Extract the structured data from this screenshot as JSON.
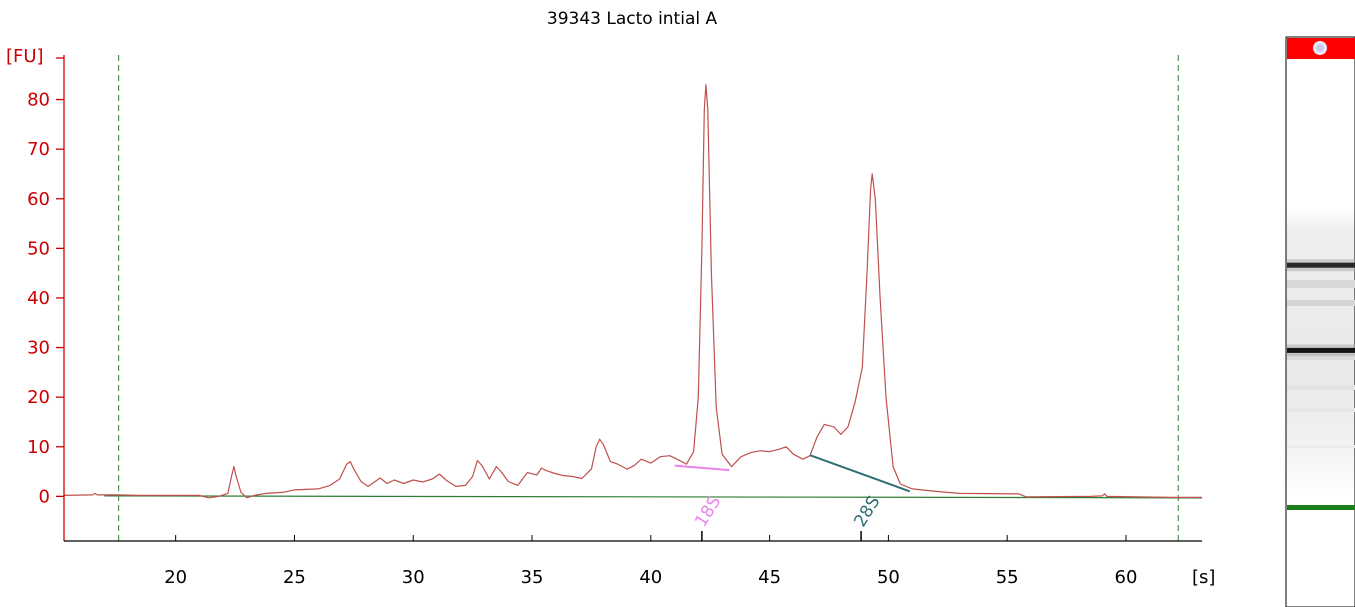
{
  "chart_data": {
    "type": "line",
    "title": "39343 Lacto intial A",
    "ylabel": "[FU]",
    "xlabel": "[s]",
    "xlim": [
      15.3,
      63.2
    ],
    "ylim": [
      -9,
      91
    ],
    "yticks": [
      0,
      10,
      20,
      30,
      40,
      50,
      60,
      70,
      80
    ],
    "yticklabels": [
      "0",
      "10",
      "20",
      "30",
      "40",
      "50",
      "60",
      "70",
      "80"
    ],
    "xticks": [
      20,
      25,
      30,
      35,
      40,
      45,
      50,
      55,
      60
    ],
    "xticklabels": [
      "20",
      "25",
      "30",
      "35",
      "40",
      "45",
      "50",
      "55",
      "60"
    ],
    "grid": false,
    "dashed_markers_x": [
      17.6,
      62.2
    ],
    "series": [
      {
        "color": "#c0504d",
        "points": [
          [
            15.3,
            0.2
          ],
          [
            16.5,
            0.3
          ],
          [
            16.6,
            0.6
          ],
          [
            16.7,
            0.3
          ],
          [
            17.5,
            0.3
          ],
          [
            18.5,
            0.2
          ],
          [
            21.0,
            0.2
          ],
          [
            21.4,
            -0.3
          ],
          [
            21.8,
            0.0
          ],
          [
            22.2,
            0.6
          ],
          [
            22.35,
            4.0
          ],
          [
            22.45,
            6.0
          ],
          [
            22.55,
            4.0
          ],
          [
            22.75,
            0.8
          ],
          [
            23.0,
            -0.3
          ],
          [
            23.3,
            0.2
          ],
          [
            23.8,
            0.6
          ],
          [
            24.5,
            0.8
          ],
          [
            25.0,
            1.3
          ],
          [
            25.5,
            1.4
          ],
          [
            26.0,
            1.5
          ],
          [
            26.5,
            2.2
          ],
          [
            26.9,
            3.5
          ],
          [
            27.2,
            6.5
          ],
          [
            27.35,
            7.0
          ],
          [
            27.5,
            5.5
          ],
          [
            27.8,
            3.0
          ],
          [
            28.1,
            2.0
          ],
          [
            28.4,
            3.0
          ],
          [
            28.6,
            3.7
          ],
          [
            28.9,
            2.6
          ],
          [
            29.2,
            3.3
          ],
          [
            29.6,
            2.6
          ],
          [
            30.0,
            3.3
          ],
          [
            30.4,
            2.9
          ],
          [
            30.8,
            3.5
          ],
          [
            31.1,
            4.5
          ],
          [
            31.4,
            3.2
          ],
          [
            31.8,
            2.0
          ],
          [
            32.2,
            2.2
          ],
          [
            32.5,
            4.0
          ],
          [
            32.7,
            7.2
          ],
          [
            32.9,
            6.2
          ],
          [
            33.2,
            3.5
          ],
          [
            33.5,
            6.0
          ],
          [
            33.7,
            5.0
          ],
          [
            34.0,
            3.0
          ],
          [
            34.4,
            2.2
          ],
          [
            34.8,
            4.8
          ],
          [
            35.2,
            4.3
          ],
          [
            35.4,
            5.7
          ],
          [
            35.6,
            5.2
          ],
          [
            35.9,
            4.7
          ],
          [
            36.3,
            4.2
          ],
          [
            36.7,
            4.0
          ],
          [
            37.1,
            3.6
          ],
          [
            37.5,
            5.5
          ],
          [
            37.7,
            10.0
          ],
          [
            37.85,
            11.5
          ],
          [
            38.0,
            10.5
          ],
          [
            38.3,
            7.0
          ],
          [
            38.6,
            6.5
          ],
          [
            39.0,
            5.5
          ],
          [
            39.3,
            6.2
          ],
          [
            39.6,
            7.5
          ],
          [
            40.0,
            6.7
          ],
          [
            40.4,
            8.0
          ],
          [
            40.8,
            8.2
          ],
          [
            41.1,
            7.5
          ],
          [
            41.5,
            6.5
          ],
          [
            41.8,
            9.0
          ],
          [
            42.0,
            20.0
          ],
          [
            42.15,
            50.0
          ],
          [
            42.25,
            78.0
          ],
          [
            42.32,
            83.0
          ],
          [
            42.4,
            78.0
          ],
          [
            42.55,
            45.0
          ],
          [
            42.75,
            18.0
          ],
          [
            43.0,
            8.5
          ],
          [
            43.4,
            6.0
          ],
          [
            43.8,
            8.0
          ],
          [
            44.2,
            8.8
          ],
          [
            44.6,
            9.2
          ],
          [
            45.0,
            9.0
          ],
          [
            45.4,
            9.5
          ],
          [
            45.7,
            10.0
          ],
          [
            46.0,
            8.5
          ],
          [
            46.4,
            7.5
          ],
          [
            46.7,
            8.2
          ],
          [
            47.0,
            12.0
          ],
          [
            47.3,
            14.5
          ],
          [
            47.7,
            14.0
          ],
          [
            48.0,
            12.5
          ],
          [
            48.3,
            14.0
          ],
          [
            48.6,
            19.0
          ],
          [
            48.9,
            26.0
          ],
          [
            49.1,
            45.0
          ],
          [
            49.25,
            62.0
          ],
          [
            49.32,
            65.0
          ],
          [
            49.45,
            60.0
          ],
          [
            49.65,
            40.0
          ],
          [
            49.9,
            20.0
          ],
          [
            50.2,
            6.0
          ],
          [
            50.5,
            2.5
          ],
          [
            51.0,
            1.5
          ],
          [
            52.0,
            1.0
          ],
          [
            53.0,
            0.6
          ],
          [
            55.5,
            0.5
          ],
          [
            55.8,
            -0.1
          ],
          [
            58.5,
            0.0
          ],
          [
            59.0,
            0.1
          ],
          [
            59.1,
            0.5
          ],
          [
            59.2,
            0.0
          ],
          [
            62.0,
            -0.2
          ],
          [
            63.2,
            -0.2
          ]
        ]
      }
    ],
    "baseline": {
      "color": "#2e7d32",
      "points": [
        [
          17.0,
          0.1
        ],
        [
          63.2,
          -0.3
        ]
      ]
    },
    "peaks": [
      {
        "label": "18S",
        "color": "#ee82ee",
        "marker_x": 42.15,
        "segment": [
          [
            41.0,
            6.2
          ],
          [
            43.3,
            5.3
          ]
        ]
      },
      {
        "label": "28S",
        "color": "#2f6f73",
        "marker_x": 48.85,
        "segment": [
          [
            46.7,
            8.3
          ],
          [
            50.9,
            1.0
          ]
        ]
      }
    ]
  },
  "gel_lane": {
    "top_marker_color": "#ff0000",
    "bands": [
      {
        "position": 0.4,
        "intensity": 0.85
      },
      {
        "position": 0.55,
        "intensity": 0.92
      }
    ],
    "lower_marker_color": "#1a7f1a"
  }
}
